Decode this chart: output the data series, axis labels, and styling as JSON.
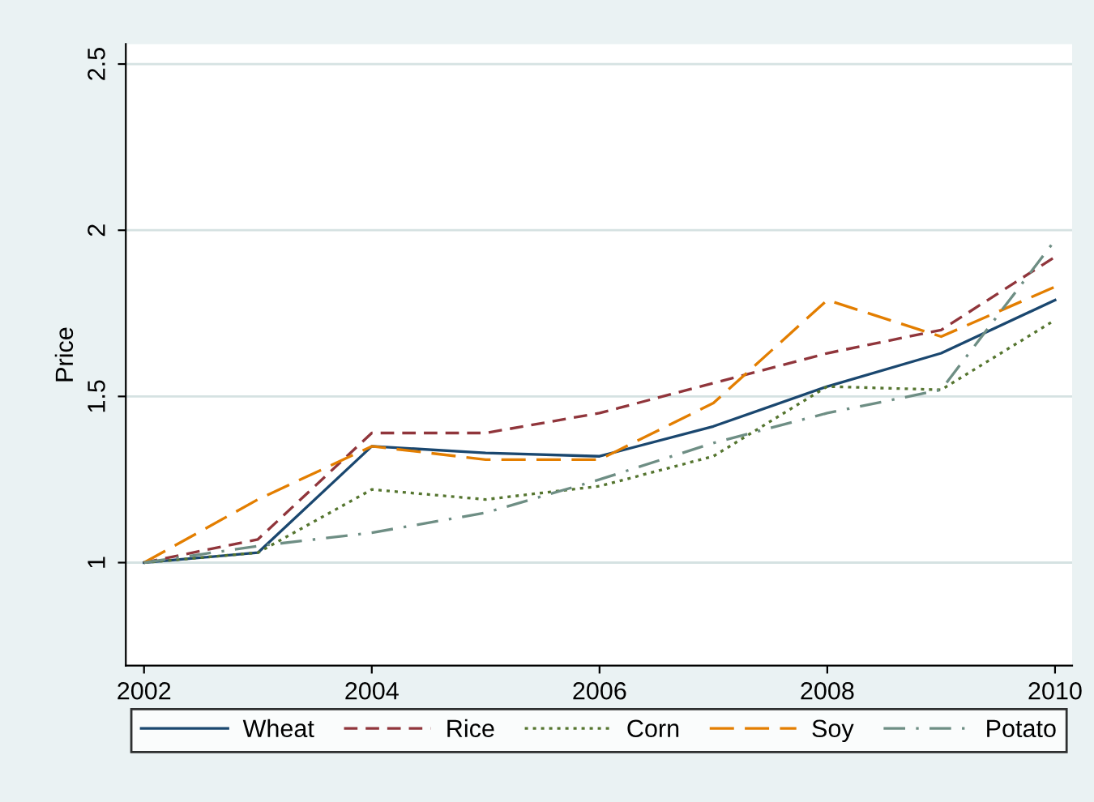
{
  "chart_data": {
    "type": "line",
    "ylabel": "Price",
    "x": [
      2002,
      2003,
      2004,
      2005,
      2006,
      2007,
      2008,
      2009,
      2010
    ],
    "series": [
      {
        "name": "Wheat",
        "color": "#1a476f",
        "line_style": "solid",
        "values": [
          1.0,
          1.03,
          1.35,
          1.33,
          1.32,
          1.41,
          1.53,
          1.63,
          1.79
        ]
      },
      {
        "name": "Rice",
        "color": "#90353b",
        "line_style": "dashed",
        "values": [
          1.0,
          1.07,
          1.39,
          1.39,
          1.45,
          1.54,
          1.63,
          1.7,
          1.92
        ]
      },
      {
        "name": "Corn",
        "color": "#55752f",
        "line_style": "dotted",
        "values": [
          1.0,
          1.03,
          1.22,
          1.19,
          1.23,
          1.32,
          1.53,
          1.52,
          1.73
        ]
      },
      {
        "name": "Soy",
        "color": "#e37e00",
        "line_style": "longdash",
        "values": [
          1.0,
          1.19,
          1.35,
          1.31,
          1.31,
          1.48,
          1.79,
          1.68,
          1.83
        ]
      },
      {
        "name": "Potato",
        "color": "#6e8e84",
        "line_style": "dashdot",
        "values": [
          1.0,
          1.05,
          1.09,
          1.15,
          1.25,
          1.36,
          1.45,
          1.52,
          1.97
        ]
      }
    ],
    "xlim": [
      2001.84,
      2010.15
    ],
    "ylim": [
      0.69,
      2.56
    ],
    "xticks": [
      2002,
      2004,
      2006,
      2008,
      2010
    ],
    "yticks": [
      1,
      1.5,
      2,
      2.5
    ],
    "grid": "y",
    "legend": "bottom",
    "marker": "none"
  }
}
